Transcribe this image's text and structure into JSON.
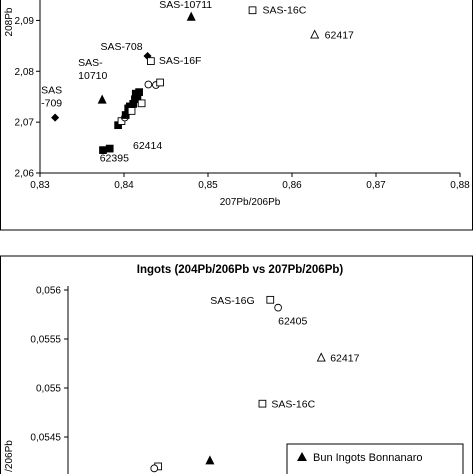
{
  "chart_data": [
    {
      "type": "scatter",
      "title": "",
      "xlabel": "207Pb/206Pb",
      "ylabel": "208Pb",
      "xlim": [
        0.83,
        0.88
      ],
      "ylim": [
        2.06,
        2.095
      ],
      "xticks": [
        "0,83",
        "0,84",
        "0,85",
        "0,86",
        "0,87",
        "0,88"
      ],
      "yticks": [
        "2,09",
        "2,08",
        "2,07",
        "2,06"
      ],
      "grid": false,
      "points": [
        {
          "x": 0.8318,
          "y": 2.0709,
          "marker": "diamond-filled",
          "label": "SAS\n-709"
        },
        {
          "x": 0.8374,
          "y": 2.0744,
          "marker": "triangle-filled",
          "label": "SAS-\n10710"
        },
        {
          "x": 0.848,
          "y": 2.0907,
          "marker": "triangle-filled",
          "label": "SAS-10711"
        },
        {
          "x": 0.8428,
          "y": 2.083,
          "marker": "diamond-filled",
          "label": "SAS-708"
        },
        {
          "x": 0.8432,
          "y": 2.082,
          "marker": "square-open",
          "label": "SAS-16F"
        },
        {
          "x": 0.8553,
          "y": 2.092,
          "marker": "square-open",
          "label": "SAS-16C"
        },
        {
          "x": 0.8627,
          "y": 2.0872,
          "marker": "triangle-open",
          "label": "62417"
        },
        {
          "x": 0.8375,
          "y": 2.0645,
          "marker": "square-filled",
          "label": "62414"
        },
        {
          "x": 0.8383,
          "y": 2.0648,
          "marker": "square-filled",
          "label": "62395"
        },
        {
          "x": 0.8393,
          "y": 2.0694,
          "marker": "square-filled",
          "label": ""
        },
        {
          "x": 0.8397,
          "y": 2.0702,
          "marker": "square-open",
          "label": ""
        },
        {
          "x": 0.8401,
          "y": 2.0709,
          "marker": "circle-open",
          "label": ""
        },
        {
          "x": 0.8402,
          "y": 2.0714,
          "marker": "square-filled",
          "label": ""
        },
        {
          "x": 0.8404,
          "y": 2.0719,
          "marker": "diamond-filled",
          "label": ""
        },
        {
          "x": 0.8405,
          "y": 2.0727,
          "marker": "square-filled",
          "label": ""
        },
        {
          "x": 0.8407,
          "y": 2.0731,
          "marker": "square-filled",
          "label": ""
        },
        {
          "x": 0.8409,
          "y": 2.0722,
          "marker": "square-open",
          "label": ""
        },
        {
          "x": 0.8411,
          "y": 2.0736,
          "marker": "square-filled",
          "label": ""
        },
        {
          "x": 0.8413,
          "y": 2.0745,
          "marker": "square-filled",
          "label": ""
        },
        {
          "x": 0.8414,
          "y": 2.0756,
          "marker": "square-filled",
          "label": ""
        },
        {
          "x": 0.8416,
          "y": 2.0752,
          "marker": "square-filled",
          "label": ""
        },
        {
          "x": 0.8418,
          "y": 2.0759,
          "marker": "square-filled",
          "label": ""
        },
        {
          "x": 0.8421,
          "y": 2.0737,
          "marker": "square-open",
          "label": ""
        },
        {
          "x": 0.8429,
          "y": 2.0774,
          "marker": "circle-open",
          "label": ""
        },
        {
          "x": 0.8438,
          "y": 2.0773,
          "marker": "circle-open",
          "label": ""
        },
        {
          "x": 0.8443,
          "y": 2.0778,
          "marker": "square-open",
          "label": ""
        }
      ]
    },
    {
      "type": "scatter",
      "title": "Ingots (204Pb/206Pb vs 207Pb/206Pb)",
      "xlabel": "",
      "ylabel": "/206Pb",
      "ylim": [
        0.05425,
        0.0562
      ],
      "yticks": [
        "0,056",
        "0,0555",
        "0,055",
        "0,0545"
      ],
      "legend": {
        "position": "bottom-right",
        "entries": [
          "Bun Ingots Bonnanaro"
        ]
      },
      "points": [
        {
          "x": 0.8558,
          "y": 0.0559,
          "marker": "square-open",
          "label": "SAS-16G"
        },
        {
          "x": 0.8568,
          "y": 0.05582,
          "marker": "circle-open",
          "label": "62405"
        },
        {
          "x": 0.8623,
          "y": 0.05531,
          "marker": "triangle-open",
          "label": "62417"
        },
        {
          "x": 0.8548,
          "y": 0.05484,
          "marker": "square-open",
          "label": "SAS-16C"
        },
        {
          "x": 0.8481,
          "y": 0.05426,
          "marker": "triangle-filled",
          "label": ""
        },
        {
          "x": 0.8415,
          "y": 0.0542,
          "marker": "square-open",
          "label": ""
        },
        {
          "x": 0.841,
          "y": 0.05418,
          "marker": "circle-open",
          "label": ""
        }
      ]
    }
  ]
}
